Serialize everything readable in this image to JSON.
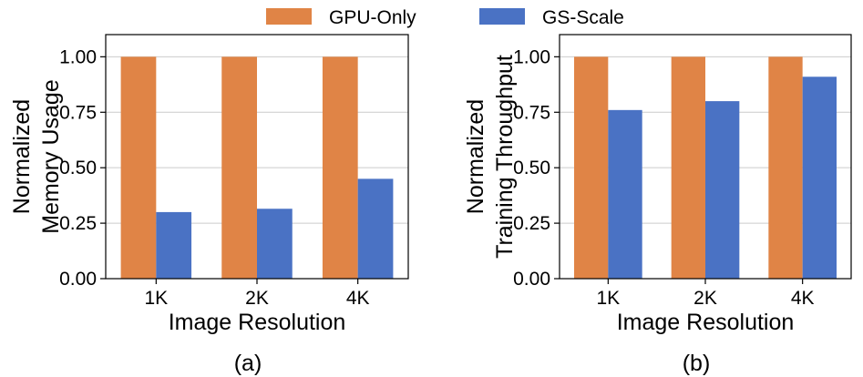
{
  "legend": {
    "series_a": "GPU-Only",
    "series_b": "GS-Scale"
  },
  "colors": {
    "gpu_only": "#e08446",
    "gs_scale": "#4a72c4",
    "grid": "#cccccc",
    "axis": "#000000"
  },
  "chart_data": [
    {
      "type": "bar",
      "panel_label": "(a)",
      "categories": [
        "1K",
        "2K",
        "4K"
      ],
      "series": [
        {
          "name": "GPU-Only",
          "values": [
            1.0,
            1.0,
            1.0
          ]
        },
        {
          "name": "GS-Scale",
          "values": [
            0.3,
            0.315,
            0.45
          ]
        }
      ],
      "xlabel": "Image Resolution",
      "ylabel": [
        "Normalized",
        "Memory Usage"
      ],
      "ylim": [
        0,
        1.1
      ],
      "yticks": [
        0.0,
        0.25,
        0.5,
        0.75,
        1.0
      ],
      "ytick_labels": [
        "0.00",
        "0.25",
        "0.50",
        "0.75",
        "1.00"
      ],
      "grid": true,
      "legend_position": "top"
    },
    {
      "type": "bar",
      "panel_label": "(b)",
      "categories": [
        "1K",
        "2K",
        "4K"
      ],
      "series": [
        {
          "name": "GPU-Only",
          "values": [
            1.0,
            1.0,
            1.0
          ]
        },
        {
          "name": "GS-Scale",
          "values": [
            0.76,
            0.8,
            0.91
          ]
        }
      ],
      "xlabel": "Image Resolution",
      "ylabel": [
        "Normalized",
        "Training Throughput"
      ],
      "ylim": [
        0,
        1.1
      ],
      "yticks": [
        0.0,
        0.25,
        0.5,
        0.75,
        1.0
      ],
      "ytick_labels": [
        "0.00",
        "0.25",
        "0.50",
        "0.75",
        "1.00"
      ],
      "grid": true,
      "legend_position": "top"
    }
  ]
}
